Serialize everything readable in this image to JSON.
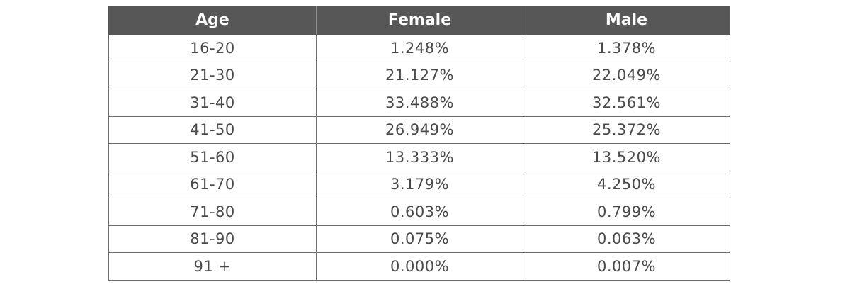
{
  "chart_data": {
    "type": "table",
    "columns": [
      "Age",
      "Female",
      "Male"
    ],
    "rows": [
      [
        "16-20",
        "1.248%",
        "1.378%"
      ],
      [
        "21-30",
        "21.127%",
        "22.049%"
      ],
      [
        "31-40",
        "33.488%",
        "32.561%"
      ],
      [
        "41-50",
        "26.949%",
        "25.372%"
      ],
      [
        "51-60",
        "13.333%",
        "13.520%"
      ],
      [
        "61-70",
        "3.179%",
        "4.250%"
      ],
      [
        "71-80",
        "0.603%",
        "0.799%"
      ],
      [
        "81-90",
        "0.075%",
        "0.063%"
      ],
      [
        "91 +",
        "0.000%",
        "0.007%"
      ]
    ]
  },
  "colors": {
    "header_bg": "#575757",
    "header_text": "#ffffff",
    "cell_text": "#4a4a4a",
    "border": "#6b6b6b"
  }
}
